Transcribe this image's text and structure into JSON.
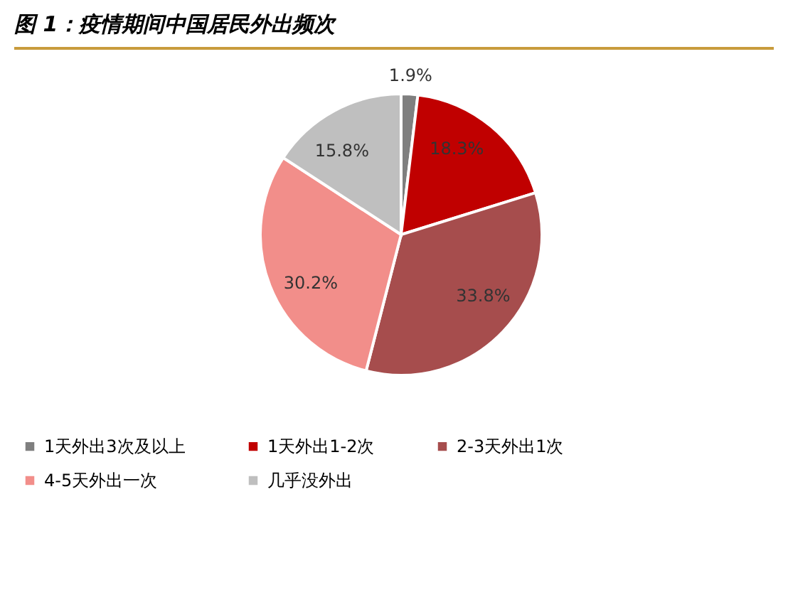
{
  "chart_data": {
    "type": "pie",
    "title": "图 1：疫情期间中国居民外出频次",
    "categories": [
      "1天外出3次及以上",
      "1天外出1-2次",
      "2-3天外出1次",
      "4-5天外出一次",
      "几乎没外出"
    ],
    "values": [
      1.9,
      18.3,
      33.8,
      30.2,
      15.8
    ],
    "colors": [
      "#7f7f7f",
      "#c00000",
      "#a64d4d",
      "#f28e8a",
      "#bfbfbf"
    ],
    "value_labels": [
      "1.9%",
      "18.3%",
      "33.8%",
      "30.2%",
      "15.8%"
    ],
    "legend": "bottom"
  }
}
